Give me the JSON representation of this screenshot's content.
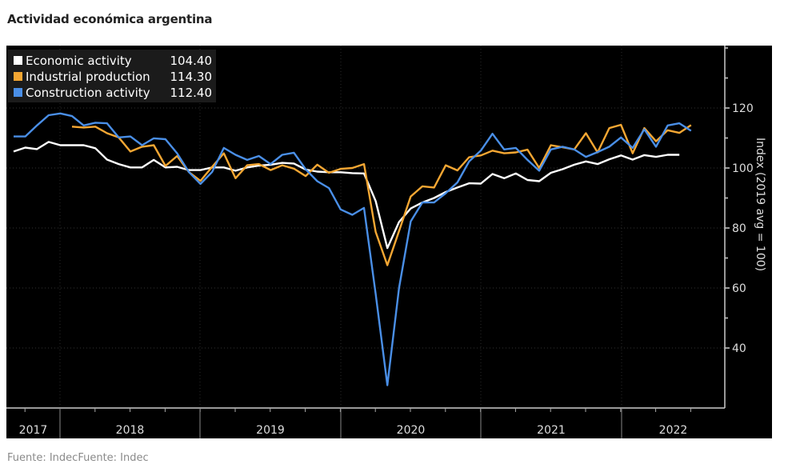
{
  "title": "Actividad económica argentina",
  "source": "Fuente: IndecFuente: Indec",
  "chart_data": {
    "type": "line",
    "title": "Actividad económica argentina",
    "xlabel": "",
    "ylabel": "Index (2019 avg = 100)",
    "ylim": [
      20,
      140
    ],
    "yticks": [
      40,
      60,
      80,
      100,
      120
    ],
    "year_labels": [
      "2017",
      "2018",
      "2019",
      "2020",
      "2021",
      "2022"
    ],
    "x_start": "2017-08",
    "frequency": "monthly",
    "grid": true,
    "legend_position": "top-left",
    "background": "#000000",
    "series": [
      {
        "name": "Economic activity",
        "last_value": "104.40",
        "color": "#ffffff",
        "start_index": 0,
        "values": [
          105.5,
          106.8,
          106.3,
          108.7,
          107.6,
          107.6,
          107.6,
          106.6,
          102.8,
          101.3,
          100.2,
          100.2,
          102.7,
          100.2,
          100.4,
          99.3,
          99.3,
          100.2,
          100.2,
          99.1,
          100.2,
          100.8,
          101.1,
          101.7,
          101.5,
          99.5,
          98.8,
          98.6,
          98.6,
          98.3,
          98.2,
          89.0,
          73.3,
          82.0,
          86.5,
          88.5,
          90.0,
          92.0,
          93.5,
          94.9,
          94.8,
          98.0,
          96.6,
          98.2,
          96.0,
          95.6,
          98.4,
          99.6,
          101.1,
          102.2,
          101.3,
          102.9,
          104.2,
          102.8,
          104.3,
          103.7,
          104.4,
          104.4
        ]
      },
      {
        "name": "Industrial production",
        "last_value": "114.30",
        "color": "#f5a733",
        "start_index": 5,
        "values": [
          113.8,
          113.5,
          113.8,
          111.6,
          110.2,
          105.5,
          107.1,
          107.6,
          100.7,
          104.0,
          98.7,
          95.7,
          100.4,
          104.9,
          96.6,
          100.9,
          101.3,
          99.3,
          100.9,
          99.8,
          97.3,
          101.1,
          98.4,
          99.7,
          100.0,
          101.3,
          78.7,
          67.6,
          79.0,
          90.5,
          93.9,
          93.5,
          100.9,
          99.2,
          103.6,
          104.2,
          105.8,
          104.9,
          105.2,
          106.1,
          100.0,
          107.6,
          106.9,
          106.2,
          111.6,
          105.2,
          113.3,
          114.4,
          104.9,
          113.3,
          108.9,
          112.6,
          111.7,
          114.3
        ]
      },
      {
        "name": "Construction activity",
        "last_value": "112.40",
        "color": "#4a8fe7",
        "start_index": 0,
        "values": [
          110.5,
          110.5,
          114.2,
          117.6,
          118.2,
          117.3,
          114.2,
          115.1,
          114.9,
          110.2,
          110.5,
          107.6,
          109.9,
          109.6,
          104.9,
          98.7,
          94.7,
          98.7,
          106.7,
          104.4,
          102.7,
          104.0,
          101.3,
          104.4,
          105.1,
          99.6,
          95.6,
          93.3,
          86.2,
          84.4,
          86.7,
          58.0,
          27.6,
          60.0,
          82.2,
          88.5,
          88.5,
          91.6,
          95.2,
          102.2,
          105.8,
          111.4,
          106.2,
          106.7,
          102.7,
          99.1,
          106.2,
          107.1,
          106.2,
          103.7,
          105.3,
          107.1,
          110.2,
          106.7,
          112.9,
          107.1,
          114.2,
          114.9,
          112.4
        ]
      }
    ]
  }
}
